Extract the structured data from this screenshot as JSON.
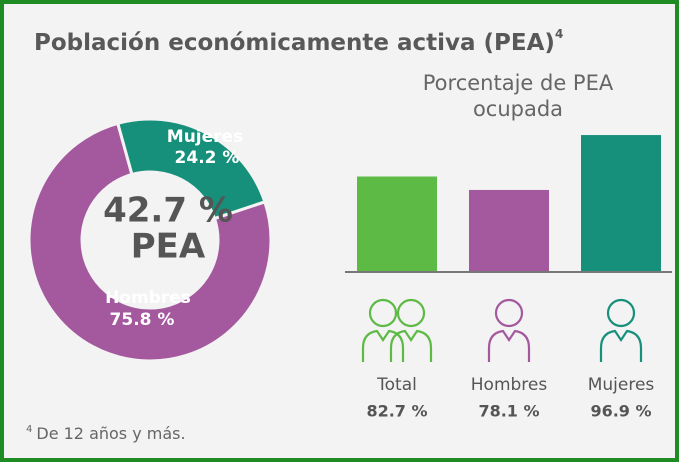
{
  "title": "Población económicamente activa (PEA)",
  "title_note_marker": "4",
  "footnote": {
    "marker": "4",
    "text": "De 12 años y más."
  },
  "chart_data": [
    {
      "type": "donut",
      "categories": [
        "Mujeres",
        "Hombres"
      ],
      "values": [
        24.2,
        75.8
      ],
      "value_labels": [
        "24.2 %",
        "75.8 %"
      ],
      "colors": [
        "#17907b",
        "#a4589e"
      ],
      "center_label": "42.7 %",
      "center_sublabel": "PEA"
    },
    {
      "type": "bar",
      "title": "Porcentaje de PEA ocupada",
      "categories": [
        "Total",
        "Hombres",
        "Mujeres"
      ],
      "values": [
        82.7,
        78.1,
        96.9
      ],
      "value_labels": [
        "82.7 %",
        "78.1 %",
        "96.9 %"
      ],
      "colors": [
        "#5dba45",
        "#a4589e",
        "#17907b"
      ],
      "ylim": [
        50,
        100
      ]
    }
  ]
}
